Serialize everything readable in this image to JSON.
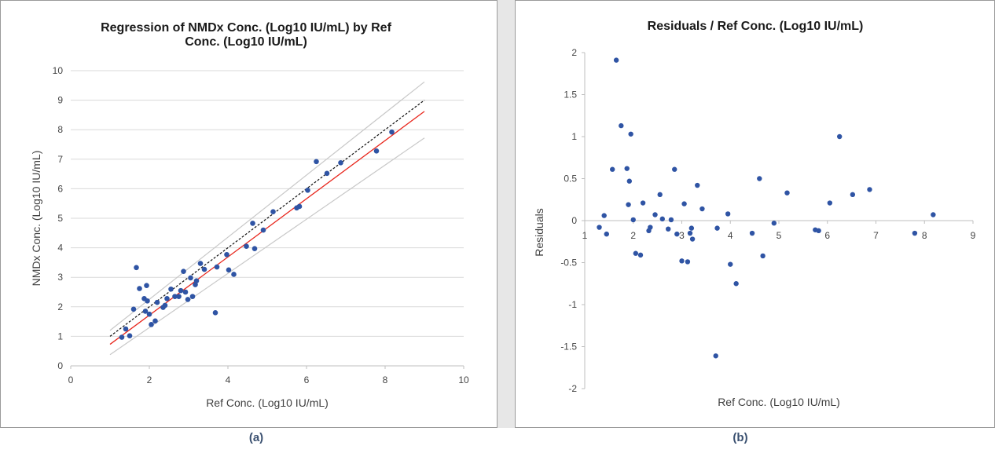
{
  "captions": {
    "a": "(a)",
    "b": "(b)"
  },
  "colors": {
    "points": "#2f54a4",
    "fit_line": "#e8261c",
    "identity_line": "#111111",
    "bounds": "#c8c8c8",
    "grid": "#d9d9d9"
  },
  "chart_data": [
    {
      "type": "scatter",
      "title": [
        "Regression of NMDx Conc. (Log10 IU/mL) by Ref",
        "Conc. (Log10 IU/mL)"
      ],
      "xlabel": "Ref Conc. (Log10 IU/mL)",
      "ylabel": "NMDx Conc. (Log10 IU/mL)",
      "xlim": [
        0,
        10
      ],
      "ylim": [
        0,
        10
      ],
      "xticks": [
        0,
        2,
        4,
        6,
        8,
        10
      ],
      "yticks": [
        0,
        1,
        2,
        3,
        4,
        5,
        6,
        7,
        8,
        9,
        10
      ],
      "grid": "horizontal",
      "series": [
        {
          "type": "scatter",
          "points": [
            [
              1.3,
              0.97
            ],
            [
              1.4,
              1.25
            ],
            [
              1.5,
              1.02
            ],
            [
              1.6,
              1.92
            ],
            [
              1.67,
              3.33
            ],
            [
              1.75,
              2.62
            ],
            [
              1.87,
              2.28
            ],
            [
              1.9,
              1.85
            ],
            [
              1.93,
              2.72
            ],
            [
              1.95,
              2.2
            ],
            [
              2.0,
              1.75
            ],
            [
              2.05,
              1.4
            ],
            [
              2.15,
              1.52
            ],
            [
              2.2,
              2.15
            ],
            [
              2.35,
              1.98
            ],
            [
              2.4,
              2.05
            ],
            [
              2.45,
              2.28
            ],
            [
              2.55,
              2.6
            ],
            [
              2.65,
              2.35
            ],
            [
              2.75,
              2.35
            ],
            [
              2.8,
              2.55
            ],
            [
              2.87,
              3.2
            ],
            [
              2.92,
              2.5
            ],
            [
              2.98,
              2.25
            ],
            [
              3.05,
              2.98
            ],
            [
              3.1,
              2.35
            ],
            [
              3.17,
              2.75
            ],
            [
              3.2,
              2.88
            ],
            [
              3.3,
              3.47
            ],
            [
              3.4,
              3.27
            ],
            [
              3.68,
              1.8
            ],
            [
              3.72,
              3.35
            ],
            [
              3.97,
              3.77
            ],
            [
              4.02,
              3.25
            ],
            [
              4.15,
              3.1
            ],
            [
              4.47,
              4.05
            ],
            [
              4.63,
              4.83
            ],
            [
              4.68,
              3.97
            ],
            [
              4.9,
              4.6
            ],
            [
              5.15,
              5.22
            ],
            [
              5.75,
              5.35
            ],
            [
              5.82,
              5.4
            ],
            [
              6.03,
              5.95
            ],
            [
              6.25,
              6.92
            ],
            [
              6.52,
              6.52
            ],
            [
              6.87,
              6.88
            ],
            [
              7.78,
              7.28
            ],
            [
              8.17,
              7.92
            ]
          ]
        },
        {
          "type": "line",
          "role": "identity",
          "points": [
            [
              1,
              1
            ],
            [
              9,
              9
            ]
          ]
        },
        {
          "type": "line",
          "role": "fit",
          "points": [
            [
              1,
              0.73
            ],
            [
              9,
              8.62
            ]
          ]
        },
        {
          "type": "line",
          "role": "upper-bound",
          "points": [
            [
              1,
              1.2
            ],
            [
              9,
              9.62
            ]
          ]
        },
        {
          "type": "line",
          "role": "lower-bound",
          "points": [
            [
              1,
              0.38
            ],
            [
              9,
              7.72
            ]
          ]
        }
      ]
    },
    {
      "type": "scatter",
      "title": "Residuals / Ref Conc. (Log10 IU/mL)",
      "xlabel": "Ref Conc. (Log10 IU/mL)",
      "ylabel": "Residuals",
      "xlim": [
        1,
        9
      ],
      "ylim": [
        -2,
        2
      ],
      "xticks": [
        1,
        2,
        3,
        4,
        5,
        6,
        7,
        8,
        9
      ],
      "yticks": [
        -2,
        -1.5,
        -1,
        -0.5,
        0,
        0.5,
        1,
        1.5,
        2
      ],
      "xtick_labels": [
        "1",
        "2",
        "3",
        "4",
        "5",
        "6",
        "7",
        "8",
        "9"
      ],
      "ytick_labels": [
        "-2",
        "-1.5",
        "-1",
        "-0.5",
        "0",
        "0.5",
        "1",
        "1.5",
        "2"
      ],
      "grid": false,
      "series": [
        {
          "type": "scatter",
          "points": [
            [
              1.3,
              -0.08
            ],
            [
              1.4,
              0.06
            ],
            [
              1.45,
              -0.16
            ],
            [
              1.57,
              0.61
            ],
            [
              1.65,
              1.91
            ],
            [
              1.75,
              1.13
            ],
            [
              1.87,
              0.62
            ],
            [
              1.9,
              0.19
            ],
            [
              1.92,
              0.47
            ],
            [
              1.95,
              1.03
            ],
            [
              2.0,
              0.01
            ],
            [
              2.05,
              -0.39
            ],
            [
              2.15,
              -0.41
            ],
            [
              2.2,
              0.21
            ],
            [
              2.32,
              -0.12
            ],
            [
              2.35,
              -0.08
            ],
            [
              2.45,
              0.07
            ],
            [
              2.55,
              0.31
            ],
            [
              2.6,
              0.02
            ],
            [
              2.72,
              -0.1
            ],
            [
              2.78,
              0.01
            ],
            [
              2.85,
              0.61
            ],
            [
              2.9,
              -0.16
            ],
            [
              3.0,
              -0.48
            ],
            [
              3.05,
              0.2
            ],
            [
              3.12,
              -0.49
            ],
            [
              3.17,
              -0.15
            ],
            [
              3.2,
              -0.09
            ],
            [
              3.22,
              -0.22
            ],
            [
              3.32,
              0.42
            ],
            [
              3.42,
              0.14
            ],
            [
              3.7,
              -1.61
            ],
            [
              3.73,
              -0.09
            ],
            [
              3.95,
              0.08
            ],
            [
              4.0,
              -0.52
            ],
            [
              4.12,
              -0.75
            ],
            [
              4.45,
              -0.15
            ],
            [
              4.6,
              0.5
            ],
            [
              4.67,
              -0.42
            ],
            [
              4.9,
              -0.03
            ],
            [
              5.17,
              0.33
            ],
            [
              5.75,
              -0.11
            ],
            [
              5.82,
              -0.12
            ],
            [
              6.05,
              0.21
            ],
            [
              6.25,
              1.0
            ],
            [
              6.52,
              0.31
            ],
            [
              6.87,
              0.37
            ],
            [
              7.8,
              -0.15
            ],
            [
              8.18,
              0.07
            ]
          ]
        }
      ]
    }
  ]
}
